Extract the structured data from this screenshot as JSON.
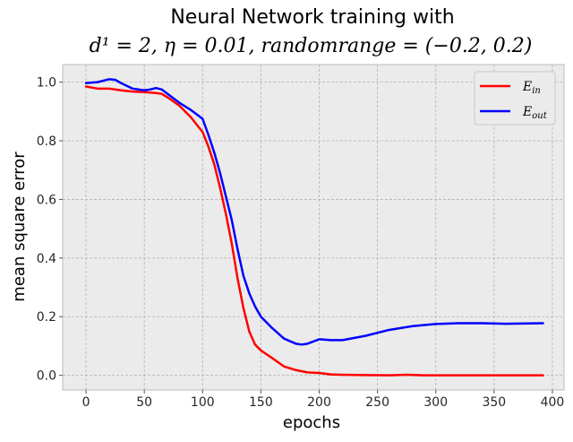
{
  "chart_data": {
    "type": "line",
    "title": "Neural Network training with",
    "subtitle": "d¹ = 2, η = 0.01, randomrange = (−0.2, 0.2)",
    "xlabel": "epochs",
    "ylabel": "mean square error",
    "xlim": [
      -20,
      410
    ],
    "ylim": [
      -0.05,
      1.06
    ],
    "xticks": [
      0,
      50,
      100,
      150,
      200,
      250,
      300,
      350,
      400
    ],
    "yticks": [
      0.0,
      0.2,
      0.4,
      0.6,
      0.8,
      1.0
    ],
    "grid": true,
    "legend_position": "top-right",
    "background": "#ebebeb",
    "series": [
      {
        "name": "E",
        "name_subscript": "in",
        "color": "#ff0000",
        "x": [
          0,
          10,
          20,
          30,
          40,
          50,
          60,
          65,
          70,
          80,
          90,
          100,
          105,
          110,
          115,
          120,
          125,
          130,
          135,
          140,
          145,
          150,
          160,
          170,
          180,
          190,
          200,
          210,
          220,
          240,
          260,
          275,
          290,
          320,
          360,
          392
        ],
        "y": [
          0.985,
          0.978,
          0.978,
          0.972,
          0.968,
          0.966,
          0.963,
          0.96,
          0.948,
          0.92,
          0.88,
          0.83,
          0.78,
          0.72,
          0.64,
          0.55,
          0.45,
          0.33,
          0.23,
          0.15,
          0.105,
          0.085,
          0.058,
          0.03,
          0.018,
          0.01,
          0.008,
          0.003,
          0.002,
          0.001,
          0.0,
          0.002,
          0.0,
          0.0,
          0.0,
          0.0
        ]
      },
      {
        "name": "E",
        "name_subscript": "out",
        "color": "#0000ff",
        "x": [
          0,
          10,
          20,
          25,
          30,
          40,
          50,
          55,
          60,
          65,
          70,
          80,
          90,
          100,
          105,
          110,
          115,
          120,
          125,
          130,
          135,
          140,
          145,
          150,
          160,
          170,
          180,
          185,
          190,
          200,
          210,
          220,
          240,
          260,
          280,
          300,
          320,
          340,
          360,
          392
        ],
        "y": [
          0.997,
          1.0,
          1.01,
          1.008,
          0.997,
          0.978,
          0.972,
          0.975,
          0.98,
          0.975,
          0.96,
          0.93,
          0.905,
          0.875,
          0.82,
          0.76,
          0.69,
          0.61,
          0.53,
          0.43,
          0.34,
          0.28,
          0.235,
          0.2,
          0.16,
          0.125,
          0.108,
          0.105,
          0.108,
          0.123,
          0.12,
          0.12,
          0.135,
          0.155,
          0.168,
          0.175,
          0.178,
          0.178,
          0.176,
          0.178
        ]
      }
    ]
  }
}
